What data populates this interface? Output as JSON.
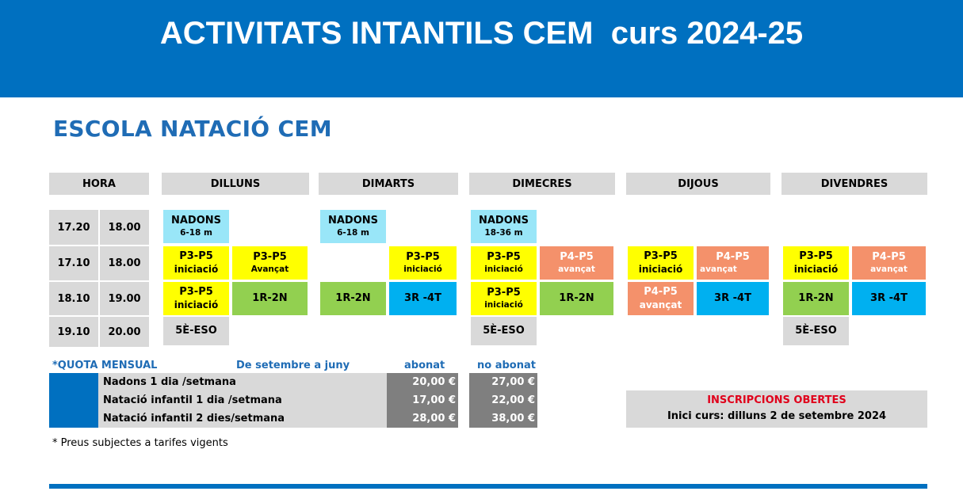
{
  "header": {
    "title": "ACTIVITATS INTANTILS CEM  curs 2024-25"
  },
  "section_title": "ESCOLA NATACIÓ CEM",
  "colors": {
    "brand_blue": "#0070c0",
    "grey": "#d9d9d9",
    "cyan": "#99e6f8",
    "yellow": "#ffff00",
    "orange": "#f4916b",
    "green": "#92d050",
    "sky": "#00b0f0"
  },
  "columns": {
    "hora": "HORA",
    "days": [
      "DILLUNS",
      "DIMARTS",
      "DIMECRES",
      "DIJOUS",
      "DIVENDRES"
    ]
  },
  "times": [
    {
      "start": "17.20",
      "end": "18.00"
    },
    {
      "start": "17.10",
      "end": "18.00"
    },
    {
      "start": "18.10",
      "end": "19.00"
    },
    {
      "start": "19.10",
      "end": "20.00"
    }
  ],
  "cells": {
    "r1_dl": {
      "name": "NADONS",
      "sub": "6-18 m"
    },
    "r1_dm": {
      "name": "NADONS",
      "sub": "6-18 m"
    },
    "r1_dc": {
      "name": "NADONS",
      "sub": "18-36 m"
    },
    "r2_dl_a": {
      "name": "P3-P5",
      "sub": "iniciació"
    },
    "r2_dl_b": {
      "name": "P3-P5",
      "sub": "Avançat"
    },
    "r2_dm_b": {
      "name": "P3-P5",
      "sub": "iniciació"
    },
    "r2_dc_a": {
      "name": "P3-P5",
      "sub": "iniciació"
    },
    "r2_dc_b": {
      "name": "P4-P5",
      "sub": "avançat"
    },
    "r2_dj_a": {
      "name": "P3-P5",
      "sub": "iniciació"
    },
    "r2_dj_b": {
      "name": "P4-P5",
      "sub": "avançat"
    },
    "r2_dv_a": {
      "name": "P3-P5",
      "sub": "iniciació"
    },
    "r2_dv_b": {
      "name": "P4-P5",
      "sub": "avançat"
    },
    "r3_dl_a": {
      "name": "P3-P5",
      "sub": "iniciació"
    },
    "r3_dl_b": {
      "name": "1R-2N"
    },
    "r3_dm_a": {
      "name": "1R-2N"
    },
    "r3_dm_b": {
      "name": "3R -4T"
    },
    "r3_dc_a": {
      "name": "P3-P5",
      "sub": "iniciació"
    },
    "r3_dc_b": {
      "name": "1R-2N"
    },
    "r3_dj_a": {
      "name": "P4-P5",
      "sub": "avançat"
    },
    "r3_dj_b": {
      "name": "3R -4T"
    },
    "r3_dv_a": {
      "name": "1R-2N"
    },
    "r3_dv_b": {
      "name": "3R -4T"
    },
    "r4_dl_a": {
      "name": "5È-ESO"
    },
    "r4_dc_a": {
      "name": "5È-ESO"
    },
    "r4_dv_a": {
      "name": "5È-ESO"
    }
  },
  "fees": {
    "heading": "*QUOTA MENSUAL",
    "period": "De setembre a juny",
    "col_member": "abonat",
    "col_nonmember": "no abonat",
    "rows": [
      {
        "label": "Nadons 1 dia /setmana",
        "member": "20,00 €",
        "nonmember": "27,00 €"
      },
      {
        "label": "Natació infantil 1 dia /setmana",
        "member": "17,00 €",
        "nonmember": "22,00 €"
      },
      {
        "label": "Natació infantil 2 dies/setmana",
        "member": "28,00 €",
        "nonmember": "38,00 €"
      }
    ],
    "note": "* Preus subjectes a tarifes vigents"
  },
  "registration": {
    "title": "INSCRIPCIONS OBERTES",
    "start": "Inici curs: dilluns 2 de setembre 2024"
  }
}
